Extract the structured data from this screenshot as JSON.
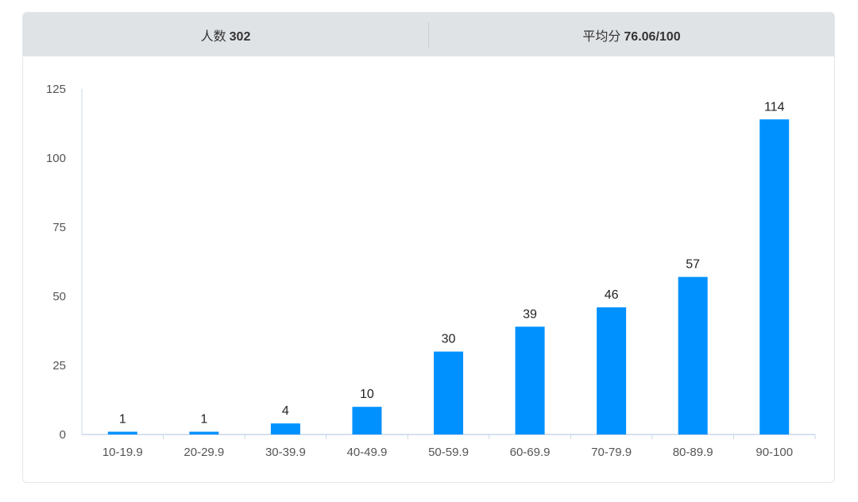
{
  "summary": {
    "count_label": "人数",
    "count_value": "302",
    "avg_label": "平均分",
    "avg_value": "76.06/100"
  },
  "chart_data": {
    "type": "bar",
    "title": "",
    "xlabel": "",
    "ylabel": "",
    "categories": [
      "10-19.9",
      "20-29.9",
      "30-39.9",
      "40-49.9",
      "50-59.9",
      "60-69.9",
      "70-79.9",
      "80-89.9",
      "90-100"
    ],
    "values": [
      1,
      1,
      4,
      10,
      30,
      39,
      46,
      57,
      114
    ],
    "ylim": [
      0,
      125
    ],
    "yticks": [
      0,
      25,
      50,
      75,
      100,
      125
    ],
    "grid": false,
    "legend": "none",
    "bar_color": "#0091ff",
    "axis_color": "#c9d6e8"
  }
}
